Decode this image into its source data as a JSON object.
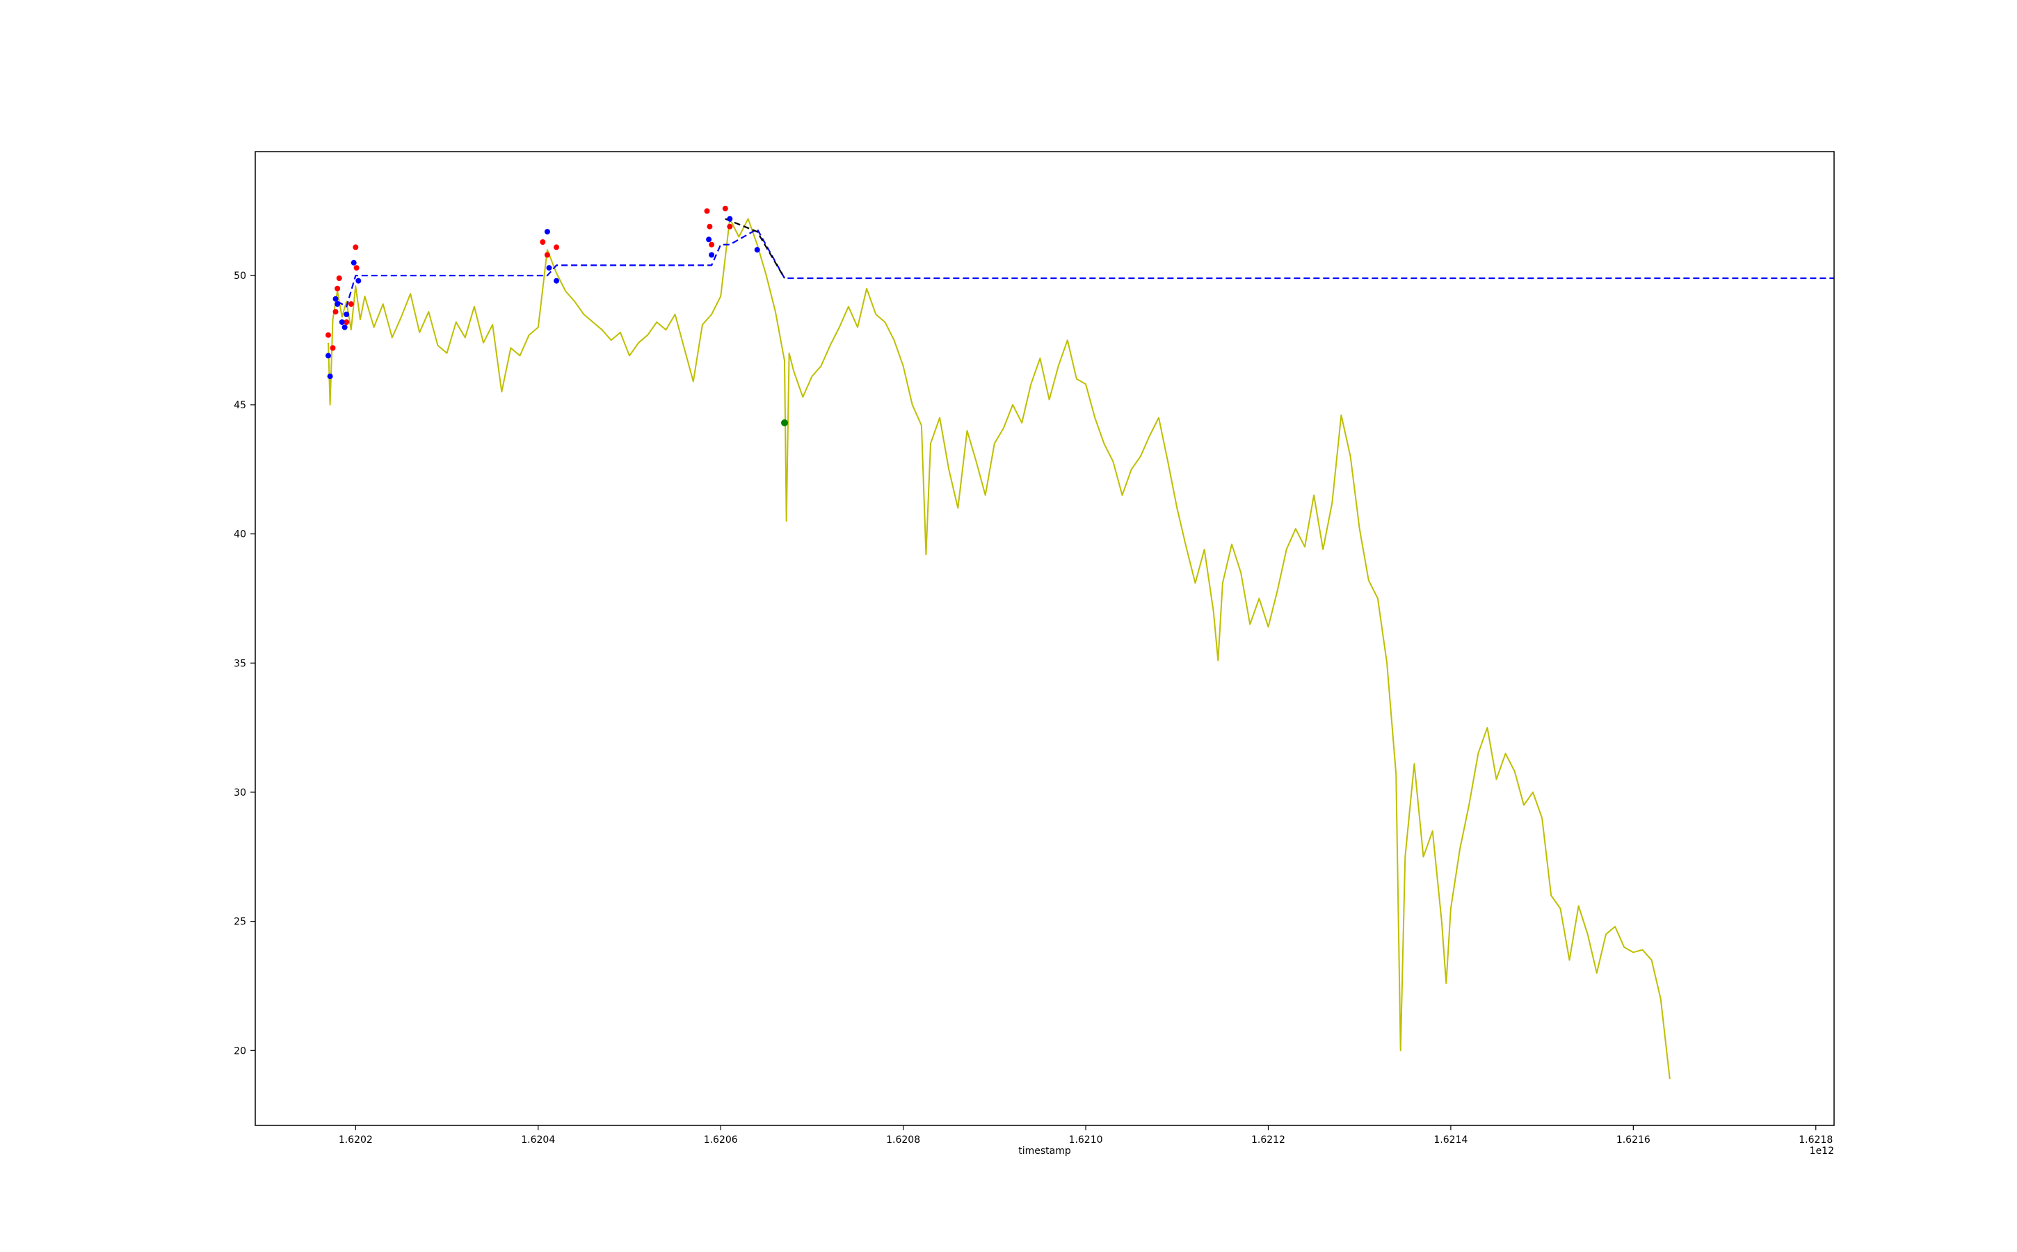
{
  "chart_data": {
    "type": "line",
    "title": "",
    "xlabel": "timestamp",
    "ylabel": "",
    "x_offset_label": "1e12",
    "xlim": [
      1.62009,
      1.62182
    ],
    "ylim": [
      17.1,
      54.8
    ],
    "x_ticks": [
      1.6202,
      1.6204,
      1.6206,
      1.6208,
      1.621,
      1.6212,
      1.6214,
      1.6216,
      1.6218
    ],
    "x_tick_labels": [
      "1.6202",
      "1.6204",
      "1.6206",
      "1.6208",
      "1.6210",
      "1.6212",
      "1.6214",
      "1.6216",
      "1.6218"
    ],
    "y_ticks": [
      20,
      25,
      30,
      35,
      40,
      45,
      50
    ],
    "y_tick_labels": [
      "20",
      "25",
      "30",
      "35",
      "40",
      "45",
      "50"
    ],
    "grid": false,
    "colors": {
      "price": "#bfbf00",
      "level_blue": "#0000ff",
      "level_black": "#000000",
      "marker_red": "#ff0000",
      "marker_blue": "#0000ff",
      "marker_green": "#008000"
    },
    "series": [
      {
        "style": "solid",
        "color": "#bfbf00",
        "points": [
          [
            1.62017,
            47.4
          ],
          [
            1.620172,
            45.0
          ],
          [
            1.620175,
            48.3
          ],
          [
            1.62018,
            49.4
          ],
          [
            1.620185,
            48.4
          ],
          [
            1.62019,
            49.0
          ],
          [
            1.620195,
            47.9
          ],
          [
            1.6202,
            49.6
          ],
          [
            1.620205,
            48.3
          ],
          [
            1.62021,
            49.2
          ],
          [
            1.62022,
            48.0
          ],
          [
            1.62023,
            48.9
          ],
          [
            1.62024,
            47.6
          ],
          [
            1.62025,
            48.4
          ],
          [
            1.62026,
            49.3
          ],
          [
            1.62027,
            47.8
          ],
          [
            1.62028,
            48.6
          ],
          [
            1.62029,
            47.3
          ],
          [
            1.6203,
            47.0
          ],
          [
            1.62031,
            48.2
          ],
          [
            1.62032,
            47.6
          ],
          [
            1.62033,
            48.8
          ],
          [
            1.62034,
            47.4
          ],
          [
            1.62035,
            48.1
          ],
          [
            1.62036,
            45.5
          ],
          [
            1.62037,
            47.2
          ],
          [
            1.62038,
            46.9
          ],
          [
            1.62039,
            47.7
          ],
          [
            1.6204,
            48.0
          ],
          [
            1.62041,
            51.0
          ],
          [
            1.62042,
            50.1
          ],
          [
            1.62043,
            49.4
          ],
          [
            1.62044,
            49.0
          ],
          [
            1.62045,
            48.5
          ],
          [
            1.62046,
            48.2
          ],
          [
            1.62047,
            47.9
          ],
          [
            1.62048,
            47.5
          ],
          [
            1.62049,
            47.8
          ],
          [
            1.6205,
            46.9
          ],
          [
            1.62051,
            47.4
          ],
          [
            1.62052,
            47.7
          ],
          [
            1.62053,
            48.2
          ],
          [
            1.62054,
            47.9
          ],
          [
            1.62055,
            48.5
          ],
          [
            1.62056,
            47.2
          ],
          [
            1.62057,
            45.9
          ],
          [
            1.62058,
            48.1
          ],
          [
            1.62059,
            48.5
          ],
          [
            1.6206,
            49.2
          ],
          [
            1.62061,
            52.2
          ],
          [
            1.62062,
            51.5
          ],
          [
            1.62063,
            52.2
          ],
          [
            1.62064,
            51.2
          ],
          [
            1.62065,
            50.0
          ],
          [
            1.62066,
            48.6
          ],
          [
            1.62067,
            46.7
          ],
          [
            1.620672,
            40.5
          ],
          [
            1.620675,
            47.0
          ],
          [
            1.62068,
            46.3
          ],
          [
            1.62069,
            45.3
          ],
          [
            1.6207,
            46.1
          ],
          [
            1.62071,
            46.5
          ],
          [
            1.62072,
            47.3
          ],
          [
            1.62073,
            48.0
          ],
          [
            1.62074,
            48.8
          ],
          [
            1.62075,
            48.0
          ],
          [
            1.62076,
            49.5
          ],
          [
            1.62077,
            48.5
          ],
          [
            1.62078,
            48.2
          ],
          [
            1.62079,
            47.5
          ],
          [
            1.6208,
            46.5
          ],
          [
            1.62081,
            45.0
          ],
          [
            1.62082,
            44.2
          ],
          [
            1.620825,
            39.2
          ],
          [
            1.62083,
            43.5
          ],
          [
            1.62084,
            44.5
          ],
          [
            1.62085,
            42.5
          ],
          [
            1.62086,
            41.0
          ],
          [
            1.62087,
            44.0
          ],
          [
            1.62088,
            42.8
          ],
          [
            1.62089,
            41.5
          ],
          [
            1.6209,
            43.5
          ],
          [
            1.62091,
            44.1
          ],
          [
            1.62092,
            45.0
          ],
          [
            1.62093,
            44.3
          ],
          [
            1.62094,
            45.8
          ],
          [
            1.62095,
            46.8
          ],
          [
            1.62096,
            45.2
          ],
          [
            1.62097,
            46.5
          ],
          [
            1.62098,
            47.5
          ],
          [
            1.62099,
            46.0
          ],
          [
            1.621,
            45.8
          ],
          [
            1.62101,
            44.5
          ],
          [
            1.62102,
            43.5
          ],
          [
            1.62103,
            42.8
          ],
          [
            1.62104,
            41.5
          ],
          [
            1.62105,
            42.5
          ],
          [
            1.62106,
            43.0
          ],
          [
            1.62107,
            43.8
          ],
          [
            1.62108,
            44.5
          ],
          [
            1.62109,
            42.8
          ],
          [
            1.6211,
            41.0
          ],
          [
            1.62111,
            39.5
          ],
          [
            1.62112,
            38.1
          ],
          [
            1.62113,
            39.4
          ],
          [
            1.62114,
            37.0
          ],
          [
            1.621145,
            35.1
          ],
          [
            1.62115,
            38.1
          ],
          [
            1.62116,
            39.6
          ],
          [
            1.62117,
            38.5
          ],
          [
            1.62118,
            36.5
          ],
          [
            1.62119,
            37.5
          ],
          [
            1.6212,
            36.4
          ],
          [
            1.62121,
            37.8
          ],
          [
            1.62122,
            39.4
          ],
          [
            1.62123,
            40.2
          ],
          [
            1.62124,
            39.5
          ],
          [
            1.62125,
            41.5
          ],
          [
            1.62126,
            39.4
          ],
          [
            1.62127,
            41.2
          ],
          [
            1.62128,
            44.6
          ],
          [
            1.62129,
            43.0
          ],
          [
            1.6213,
            40.2
          ],
          [
            1.62131,
            38.2
          ],
          [
            1.62132,
            37.5
          ],
          [
            1.62133,
            35.0
          ],
          [
            1.62134,
            30.7
          ],
          [
            1.621345,
            20.0
          ],
          [
            1.62135,
            27.5
          ],
          [
            1.62136,
            31.1
          ],
          [
            1.62137,
            27.5
          ],
          [
            1.62138,
            28.5
          ],
          [
            1.62139,
            25.0
          ],
          [
            1.621395,
            22.6
          ],
          [
            1.6214,
            25.5
          ],
          [
            1.62141,
            27.8
          ],
          [
            1.62142,
            29.5
          ],
          [
            1.62143,
            31.5
          ],
          [
            1.62144,
            32.5
          ],
          [
            1.62145,
            30.5
          ],
          [
            1.62146,
            31.5
          ],
          [
            1.62147,
            30.8
          ],
          [
            1.62148,
            29.5
          ],
          [
            1.62149,
            30.0
          ],
          [
            1.6215,
            29.0
          ],
          [
            1.62151,
            26.0
          ],
          [
            1.62152,
            25.5
          ],
          [
            1.62153,
            23.5
          ],
          [
            1.62154,
            25.6
          ],
          [
            1.62155,
            24.5
          ],
          [
            1.62156,
            23.0
          ],
          [
            1.62157,
            24.5
          ],
          [
            1.62158,
            24.8
          ],
          [
            1.62159,
            24.0
          ],
          [
            1.6216,
            23.8
          ],
          [
            1.62161,
            23.9
          ],
          [
            1.62162,
            23.5
          ],
          [
            1.62163,
            22.0
          ],
          [
            1.62164,
            18.9
          ]
        ]
      },
      {
        "style": "dashed",
        "color": "#0000ff",
        "points": [
          [
            1.62018,
            49.0
          ],
          [
            1.62019,
            48.8
          ],
          [
            1.6202,
            50.0
          ],
          [
            1.62041,
            50.0
          ],
          [
            1.62042,
            50.4
          ],
          [
            1.62059,
            50.4
          ],
          [
            1.6206,
            51.2
          ],
          [
            1.62061,
            51.2
          ],
          [
            1.62064,
            51.8
          ],
          [
            1.62067,
            49.9
          ],
          [
            1.62182,
            49.9
          ]
        ]
      },
      {
        "style": "dashed",
        "color": "#000000",
        "points": [
          [
            1.620605,
            52.2
          ],
          [
            1.62064,
            51.7
          ],
          [
            1.62067,
            49.9
          ]
        ]
      }
    ],
    "markers": [
      {
        "color": "#ff0000",
        "points": [
          [
            1.62017,
            47.7
          ],
          [
            1.620175,
            47.2
          ],
          [
            1.620178,
            48.6
          ],
          [
            1.62018,
            49.5
          ],
          [
            1.620182,
            49.9
          ],
          [
            1.62019,
            48.2
          ],
          [
            1.620195,
            48.9
          ],
          [
            1.6202,
            51.1
          ],
          [
            1.620201,
            50.3
          ],
          [
            1.620405,
            51.3
          ],
          [
            1.62041,
            50.8
          ],
          [
            1.62042,
            51.1
          ],
          [
            1.620585,
            52.5
          ],
          [
            1.620588,
            51.9
          ],
          [
            1.62059,
            51.2
          ],
          [
            1.620605,
            52.6
          ],
          [
            1.62061,
            51.9
          ]
        ]
      },
      {
        "color": "#0000ff",
        "points": [
          [
            1.62017,
            46.9
          ],
          [
            1.620172,
            46.1
          ],
          [
            1.620178,
            49.1
          ],
          [
            1.62018,
            48.9
          ],
          [
            1.620185,
            48.2
          ],
          [
            1.620188,
            48.0
          ],
          [
            1.62019,
            48.5
          ],
          [
            1.620198,
            50.5
          ],
          [
            1.620203,
            49.8
          ],
          [
            1.62041,
            51.7
          ],
          [
            1.620412,
            50.3
          ],
          [
            1.62042,
            49.8
          ],
          [
            1.620587,
            51.4
          ],
          [
            1.62059,
            50.8
          ],
          [
            1.62061,
            52.2
          ],
          [
            1.62064,
            51.0
          ]
        ]
      },
      {
        "color": "#008000",
        "points": [
          [
            1.62067,
            44.3
          ]
        ]
      }
    ]
  }
}
